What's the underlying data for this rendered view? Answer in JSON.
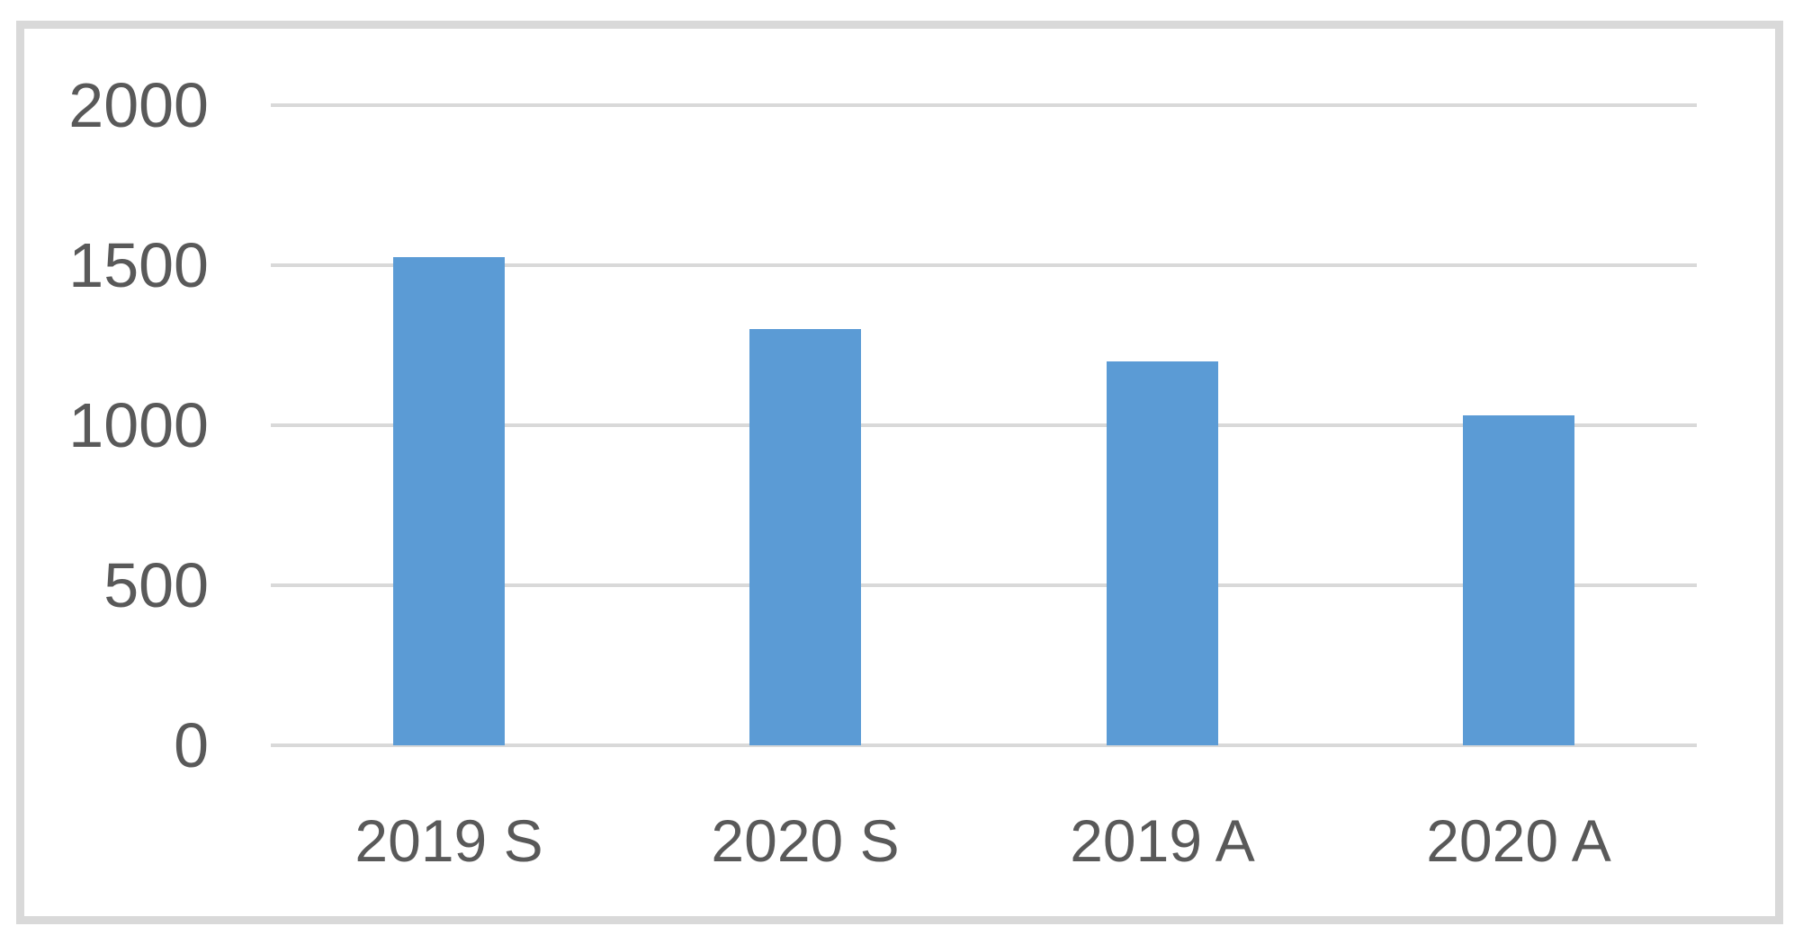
{
  "chart_data": {
    "type": "bar",
    "title": "",
    "xlabel": "",
    "ylabel": "",
    "categories": [
      "2019 S",
      "2020 S",
      "2019 A",
      "2020 A"
    ],
    "values": [
      1525,
      1300,
      1200,
      1030
    ],
    "ylim": [
      0,
      2000
    ],
    "yticks": [
      0,
      500,
      1000,
      1500,
      2000
    ],
    "ytick_labels": [
      "0",
      "500",
      "1000",
      "1500",
      "2000"
    ],
    "grid": true,
    "legend": false,
    "bar_color": "#5b9bd5",
    "gridline_color": "#d9d9d9",
    "axis_text_color": "#595959",
    "frame_border_color": "#d9d9d9",
    "background_color": "#ffffff"
  }
}
